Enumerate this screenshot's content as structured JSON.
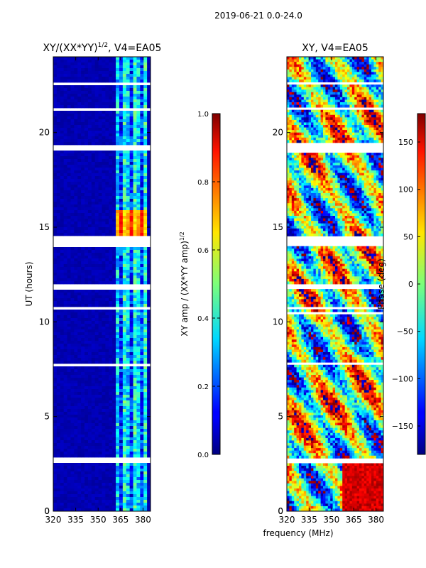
{
  "chart_data": [
    {
      "type": "heatmap",
      "title": "XY/(XX*YY)^1/2, V4=EA05",
      "title_main": "XY/(XX*YY)",
      "title_exp": "1/2",
      "title_tail": ", V4=EA05",
      "xlabel": "frequency (MHz)",
      "ylabel": "UT (hours)",
      "xlim": [
        320,
        385
      ],
      "ylim": [
        0,
        24
      ],
      "xticks": [
        320,
        335,
        350,
        365,
        380
      ],
      "yticks": [
        0,
        5,
        10,
        15,
        20
      ],
      "colorbar": {
        "label": "XY amp / (XX*YY amp)^1/2",
        "label_main": "XY amp / (XX*YY amp)",
        "label_exp": "1/2",
        "range": [
          0.0,
          1.0
        ],
        "ticks": [
          "0.0",
          "0.2",
          "0.4",
          "0.6",
          "0.8",
          "1.0"
        ]
      },
      "description_values": {
        "background_amp": 0.05,
        "active_band_mhz": [
          362,
          382
        ],
        "active_band_amp": 0.35,
        "burst_hours": [
          14.5,
          15.9
        ],
        "burst_amp": 0.9
      }
    },
    {
      "type": "heatmap",
      "title": "XY, V4=EA05",
      "xlabel": "frequency (MHz)",
      "ylabel": "",
      "xlim": [
        320,
        385
      ],
      "ylim": [
        0,
        24
      ],
      "xticks": [
        320,
        335,
        350,
        365,
        380
      ],
      "yticks": [
        0,
        5,
        10,
        15,
        20
      ],
      "colorbar": {
        "label": "Phase (deg)",
        "range": [
          -180,
          180
        ],
        "ticks": [
          "150",
          "100",
          "50",
          "0",
          "−50",
          "−100",
          "−150"
        ],
        "tick_values": [
          150,
          100,
          50,
          0,
          -50,
          -100,
          -150
        ]
      }
    }
  ],
  "page": {
    "suptitle": "2019-06-21 0.0-24.0",
    "shared_xlabel": "frequency (MHz)"
  },
  "gaps_hours": [
    [
      2.55,
      2.78
    ],
    [
      7.72,
      7.85
    ],
    [
      10.45,
      10.55
    ],
    [
      10.72,
      10.82
    ],
    [
      11.72,
      11.95
    ],
    [
      14.02,
      14.35
    ],
    [
      14.45,
      14.55
    ],
    [
      18.98,
      19.4
    ],
    [
      21.2,
      21.35
    ],
    [
      22.5,
      22.62
    ]
  ],
  "colors": {
    "low": "#00007f",
    "high": "#7f0000"
  }
}
